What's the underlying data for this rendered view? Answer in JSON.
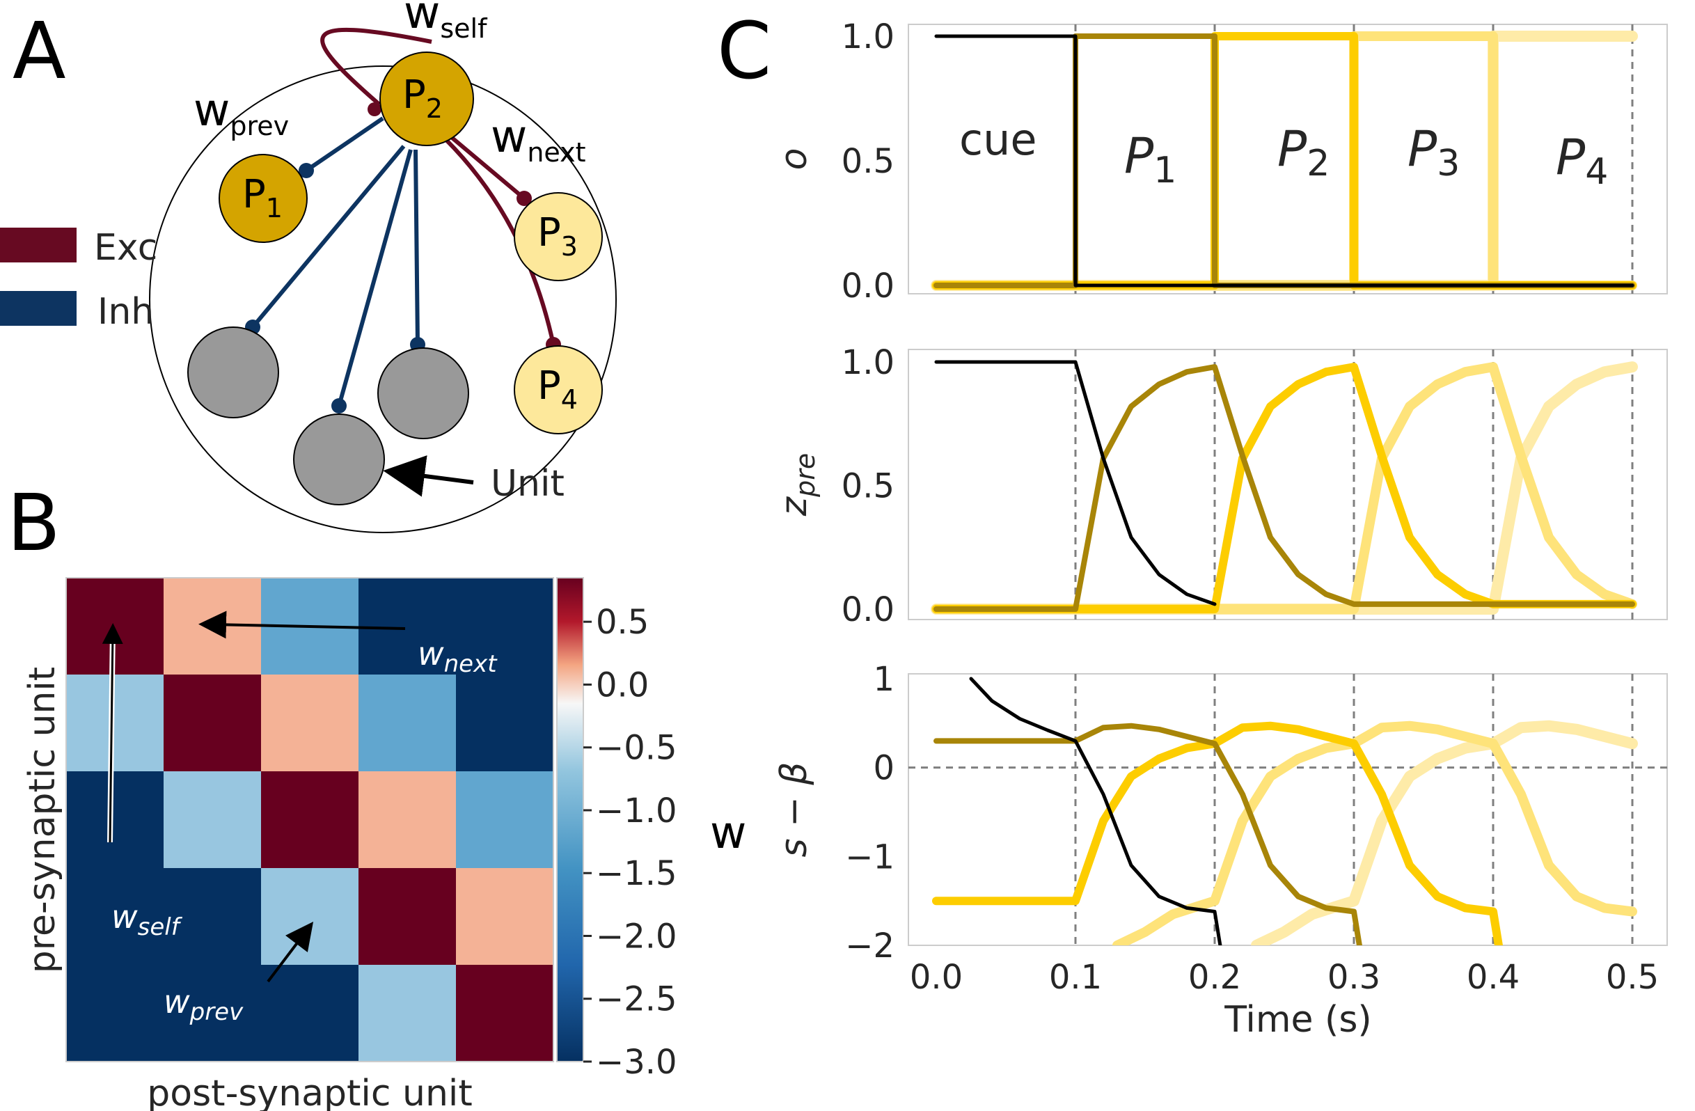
{
  "panels": {
    "a": "A",
    "b": "B",
    "c": "C"
  },
  "panel_a": {
    "w_self_main": "w",
    "w_self_sub": "self",
    "w_prev_main": "w",
    "w_prev_sub": "prev",
    "w_next_main": "w",
    "w_next_sub": "next",
    "legend": [
      {
        "label": "Exc",
        "color": "#670a22"
      },
      {
        "label": "Inh",
        "color": "#0d3461"
      }
    ],
    "neurons": [
      {
        "main": "P",
        "sub": "2"
      },
      {
        "main": "P",
        "sub": "1"
      },
      {
        "main": "P",
        "sub": "3"
      },
      {
        "main": "P",
        "sub": "4"
      }
    ],
    "unit_label": "Unit",
    "colors": {
      "active": "#d4a400",
      "inactive": "#fde89b",
      "other": "#999999"
    }
  },
  "panel_b": {
    "ylabel": "pre-synaptic unit",
    "xlabel": "post-synaptic unit",
    "colorbar_label": "w",
    "colorbar_ticks": [
      "0.5",
      "0.0",
      "−0.5",
      "−1.0",
      "−1.5",
      "−2.0",
      "−2.5",
      "−3.0"
    ],
    "annotations": {
      "w_next": {
        "main": "w",
        "sub": "next"
      },
      "w_self": {
        "main": "w",
        "sub": "self"
      },
      "w_prev": {
        "main": "w",
        "sub": "prev"
      }
    },
    "matrix_colors": {
      "self": "#67001f",
      "next": "#f4b296",
      "prev": "#98c6e0",
      "far_next": "#61a6cf",
      "far": "#053061"
    }
  },
  "panel_c": {
    "xlabel": "Time (s)",
    "xticks": [
      "0.0",
      "0.1",
      "0.2",
      "0.3",
      "0.4",
      "0.5"
    ],
    "phase_labels": {
      "cue": "cue",
      "p1": {
        "main": "P",
        "sub": "1"
      },
      "p2": {
        "main": "P",
        "sub": "2"
      },
      "p3": {
        "main": "P",
        "sub": "3"
      },
      "p4": {
        "main": "P",
        "sub": "4"
      }
    },
    "series_colors": [
      "#000000",
      "#a88508",
      "#fdcd00",
      "#fee37a",
      "#feeba8"
    ]
  },
  "chart_data": [
    {
      "type": "line",
      "ylabel": "o",
      "ylim": [
        0,
        1.0
      ],
      "yticks": [
        "0.0",
        "0.5",
        "1.0"
      ],
      "xlim": [
        0,
        0.5
      ],
      "vlines": [
        0.1,
        0.2,
        0.3,
        0.4,
        0.5
      ],
      "series": [
        {
          "x": [
            0,
            0.1,
            0.1,
            0.5
          ],
          "y": [
            1,
            1,
            0,
            0
          ]
        },
        {
          "x": [
            0,
            0.1,
            0.1,
            0.2,
            0.2,
            0.5
          ],
          "y": [
            0,
            0,
            1,
            1,
            0,
            0
          ]
        },
        {
          "x": [
            0,
            0.2,
            0.2,
            0.3,
            0.3,
            0.5
          ],
          "y": [
            0,
            0,
            1,
            1,
            0,
            0
          ]
        },
        {
          "x": [
            0,
            0.3,
            0.3,
            0.4,
            0.4,
            0.5
          ],
          "y": [
            0,
            0,
            1,
            1,
            0,
            0
          ]
        },
        {
          "x": [
            0,
            0.4,
            0.4,
            0.5
          ],
          "y": [
            0,
            0,
            1,
            1
          ]
        }
      ]
    },
    {
      "type": "line",
      "ylabel": "z_pre",
      "ylim": [
        0,
        1.0
      ],
      "yticks": [
        "0.0",
        "0.5",
        "1.0"
      ],
      "xlim": [
        0,
        0.5
      ],
      "vlines": [
        0.1,
        0.2,
        0.3,
        0.4,
        0.5
      ],
      "series": [
        {
          "x": [
            0,
            0.1,
            0.12,
            0.14,
            0.16,
            0.18,
            0.2
          ],
          "y": [
            1,
            1,
            0.61,
            0.29,
            0.14,
            0.06,
            0.02
          ]
        },
        {
          "x": [
            0,
            0.1,
            0.12,
            0.14,
            0.16,
            0.18,
            0.2,
            0.22,
            0.24,
            0.26,
            0.28,
            0.3,
            0.5
          ],
          "y": [
            0,
            0,
            0.61,
            0.82,
            0.91,
            0.96,
            0.98,
            0.62,
            0.29,
            0.14,
            0.06,
            0.02,
            0.02
          ]
        },
        {
          "x": [
            0,
            0.2,
            0.22,
            0.24,
            0.26,
            0.28,
            0.3,
            0.32,
            0.34,
            0.36,
            0.38,
            0.4,
            0.5
          ],
          "y": [
            0,
            0,
            0.61,
            0.82,
            0.91,
            0.96,
            0.98,
            0.62,
            0.29,
            0.14,
            0.06,
            0.02,
            0.02
          ]
        },
        {
          "x": [
            0,
            0.3,
            0.32,
            0.34,
            0.36,
            0.38,
            0.4,
            0.42,
            0.44,
            0.46,
            0.48,
            0.5
          ],
          "y": [
            0,
            0,
            0.61,
            0.82,
            0.91,
            0.96,
            0.98,
            0.62,
            0.29,
            0.14,
            0.06,
            0.02
          ]
        },
        {
          "x": [
            0,
            0.4,
            0.42,
            0.44,
            0.46,
            0.48,
            0.5
          ],
          "y": [
            0,
            0,
            0.61,
            0.82,
            0.91,
            0.96,
            0.98
          ]
        }
      ]
    },
    {
      "type": "line",
      "ylabel": "s − β",
      "ylim": [
        -2,
        1
      ],
      "yticks": [
        "−2",
        "−1",
        "0",
        "1"
      ],
      "xlim": [
        0,
        0.5
      ],
      "vlines": [
        0.1,
        0.2,
        0.3,
        0.4,
        0.5
      ],
      "hline": 0,
      "series": [
        {
          "x": [
            0.025,
            0.04,
            0.06,
            0.08,
            0.1,
            0.12,
            0.14,
            0.16,
            0.18,
            0.2,
            0.205
          ],
          "y": [
            1,
            0.75,
            0.55,
            0.42,
            0.3,
            -0.3,
            -1.1,
            -1.45,
            -1.58,
            -1.62,
            -2.1
          ]
        },
        {
          "x": [
            0,
            0.1,
            0.12,
            0.14,
            0.16,
            0.18,
            0.2,
            0.22,
            0.24,
            0.26,
            0.28,
            0.3,
            0.305
          ],
          "y": [
            0.3,
            0.3,
            0.45,
            0.47,
            0.43,
            0.35,
            0.27,
            -0.3,
            -1.1,
            -1.45,
            -1.58,
            -1.62,
            -2.1
          ]
        },
        {
          "x": [
            0,
            0.1,
            0.12,
            0.14,
            0.16,
            0.18,
            0.2,
            0.22,
            0.24,
            0.26,
            0.28,
            0.3,
            0.32,
            0.34,
            0.36,
            0.38,
            0.4,
            0.405
          ],
          "y": [
            -1.5,
            -1.5,
            -0.6,
            -0.1,
            0.1,
            0.22,
            0.27,
            0.45,
            0.47,
            0.43,
            0.35,
            0.27,
            -0.3,
            -1.1,
            -1.45,
            -1.58,
            -1.62,
            -2.1
          ]
        },
        {
          "x": [
            0.13,
            0.15,
            0.17,
            0.19,
            0.2,
            0.22,
            0.24,
            0.26,
            0.28,
            0.3,
            0.32,
            0.34,
            0.36,
            0.38,
            0.4,
            0.42,
            0.44,
            0.46,
            0.48,
            0.5
          ],
          "y": [
            -2,
            -1.85,
            -1.65,
            -1.55,
            -1.5,
            -0.6,
            -0.1,
            0.1,
            0.22,
            0.27,
            0.45,
            0.47,
            0.43,
            0.35,
            0.27,
            -0.3,
            -1.1,
            -1.45,
            -1.58,
            -1.62
          ]
        },
        {
          "x": [
            0.23,
            0.25,
            0.27,
            0.29,
            0.3,
            0.32,
            0.34,
            0.36,
            0.38,
            0.4,
            0.42,
            0.44,
            0.46,
            0.48,
            0.5
          ],
          "y": [
            -2,
            -1.85,
            -1.65,
            -1.55,
            -1.5,
            -0.6,
            -0.1,
            0.1,
            0.22,
            0.27,
            0.45,
            0.47,
            0.43,
            0.35,
            0.27
          ]
        }
      ]
    }
  ]
}
